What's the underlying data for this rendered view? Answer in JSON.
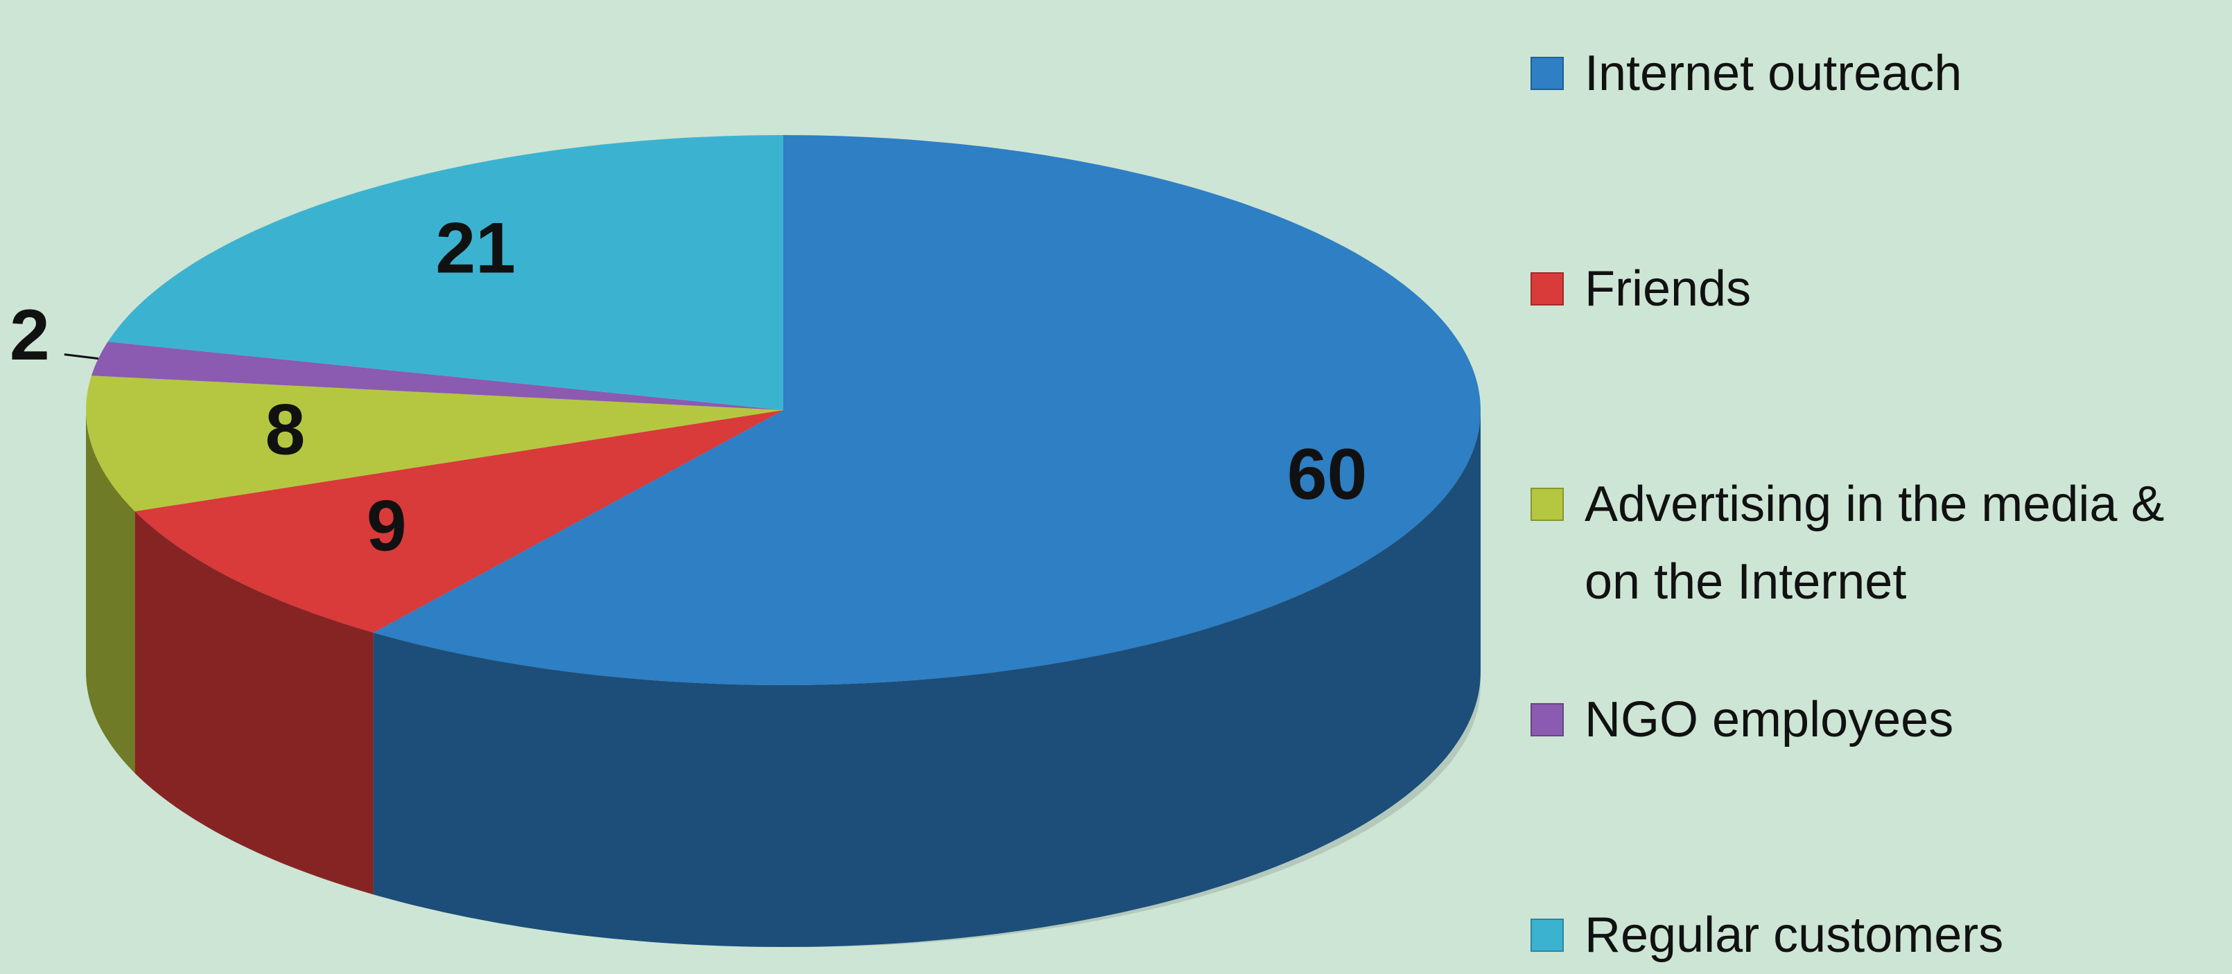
{
  "chart_data": {
    "type": "pie",
    "categories": [
      "Internet outreach",
      "Friends",
      "Advertising in the media & on the Internet",
      "NGO employees",
      "Regular customers"
    ],
    "values": [
      60,
      9,
      8,
      2,
      21
    ],
    "colors": [
      "#2e7fc4",
      "#d93a3a",
      "#b5c740",
      "#8a5bb0",
      "#3bb3d0"
    ],
    "legend": "right"
  }
}
